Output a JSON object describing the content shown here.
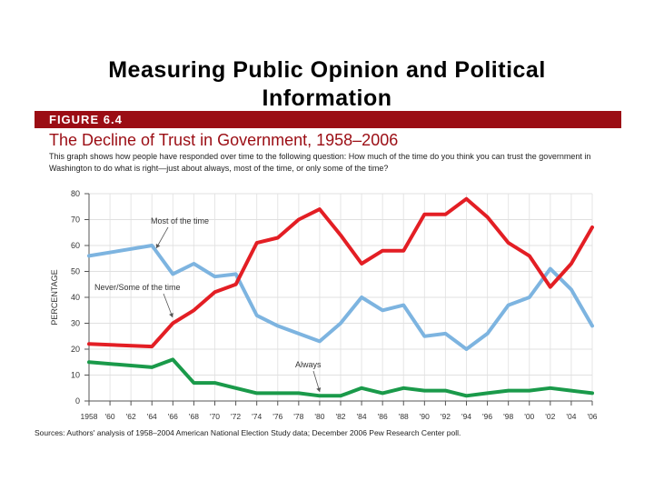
{
  "slide": {
    "title_line1": "Measuring Public Opinion and Political",
    "title_line2": "Information"
  },
  "figure": {
    "label": "FIGURE 6.4",
    "title": "The Decline of Trust in Government, 1958–2006",
    "description": "This graph shows how people have responded over time to the following question: How much of the time do you think you can trust the government in Washington to do what is right—just about always, most of the time, or only some of the time?",
    "source": "Sources: Authors' analysis of 1958–2004 American National Election Study data; December 2006 Pew Research Center poll."
  },
  "chart_data": {
    "type": "line",
    "ylabel": "PERCENTAGE",
    "ylim": [
      0,
      80
    ],
    "yticks": [
      0,
      10,
      20,
      30,
      40,
      50,
      60,
      70,
      80
    ],
    "xlim": [
      1958,
      2006
    ],
    "xtick_values": [
      1958,
      1960,
      1962,
      1964,
      1966,
      1968,
      1970,
      1972,
      1974,
      1976,
      1978,
      1980,
      1982,
      1984,
      1986,
      1988,
      1990,
      1992,
      1994,
      1996,
      1998,
      2000,
      2002,
      2004,
      2006
    ],
    "xtick_labels": [
      "1958",
      "'60",
      "'62",
      "'64",
      "'66",
      "'68",
      "'70",
      "'72",
      "'74",
      "'76",
      "'78",
      "'80",
      "'82",
      "'84",
      "'86",
      "'88",
      "'90",
      "'92",
      "'94",
      "'96",
      "'98",
      "'00",
      "'02",
      "'04",
      "'06"
    ],
    "grid": true,
    "series": [
      {
        "name": "Most of the time",
        "label": "Most of the time",
        "color": "#7db4e0",
        "x": [
          1958,
          1964,
          1966,
          1968,
          1970,
          1972,
          1974,
          1976,
          1978,
          1980,
          1982,
          1984,
          1986,
          1988,
          1990,
          1992,
          1994,
          1996,
          1998,
          2000,
          2002,
          2004,
          2006
        ],
        "values": [
          56,
          60,
          49,
          53,
          48,
          49,
          33,
          29,
          26,
          23,
          30,
          40,
          35,
          37,
          25,
          26,
          20,
          26,
          37,
          40,
          51,
          43,
          29
        ]
      },
      {
        "name": "Never/Some of the time",
        "label": "Never/Some of the time",
        "color": "#e31e24",
        "x": [
          1958,
          1964,
          1966,
          1968,
          1970,
          1972,
          1974,
          1976,
          1978,
          1980,
          1982,
          1984,
          1986,
          1988,
          1990,
          1992,
          1994,
          1996,
          1998,
          2000,
          2002,
          2004,
          2006
        ],
        "values": [
          22,
          21,
          30,
          35,
          42,
          45,
          61,
          63,
          70,
          74,
          64,
          53,
          58,
          58,
          72,
          72,
          78,
          71,
          61,
          56,
          44,
          53,
          67
        ]
      },
      {
        "name": "Always",
        "label": "Always",
        "color": "#1a9a4a",
        "x": [
          1958,
          1964,
          1966,
          1968,
          1970,
          1972,
          1974,
          1976,
          1978,
          1980,
          1982,
          1984,
          1986,
          1988,
          1990,
          1992,
          1994,
          1996,
          1998,
          2000,
          2002,
          2004,
          2006
        ],
        "values": [
          15,
          13,
          16,
          7,
          7,
          5,
          3,
          3,
          3,
          2,
          2,
          5,
          3,
          5,
          4,
          4,
          2,
          3,
          4,
          4,
          5,
          4,
          3
        ]
      }
    ]
  }
}
